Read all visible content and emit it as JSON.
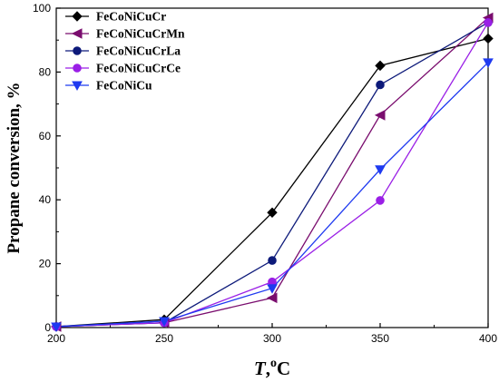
{
  "chart_data": {
    "type": "line",
    "x": [
      200,
      250,
      300,
      350,
      400
    ],
    "xlim": [
      200,
      400
    ],
    "ylim": [
      0,
      100
    ],
    "xticks": [
      200,
      250,
      300,
      350,
      400
    ],
    "yticks": [
      0,
      20,
      40,
      60,
      80,
      100
    ],
    "xlabel": {
      "italic": "T",
      "sep": ",",
      "sup": "o",
      "unit": "C"
    },
    "ylabel": "Propane conversion, %",
    "legend_position": "top-left",
    "grid": false,
    "series": [
      {
        "name": "FeCoNiCuCr",
        "color": "#000000",
        "marker": "diamond",
        "values": [
          0.3,
          2.5,
          36,
          82,
          90.5
        ]
      },
      {
        "name": "FeCoNiCuCrMn",
        "color": "#7a0d6e",
        "marker": "triangle-left",
        "values": [
          0.3,
          1.5,
          9.3,
          66.5,
          97
        ]
      },
      {
        "name": "FeCoNiCuCrLa",
        "color": "#0d1a7a",
        "marker": "circle",
        "values": [
          0.3,
          1.5,
          21,
          76,
          95.5
        ]
      },
      {
        "name": "FeCoNiCuCrCe",
        "color": "#9a1fe6",
        "marker": "circle",
        "values": [
          0.3,
          1.5,
          14.3,
          39.8,
          95.5
        ]
      },
      {
        "name": "FeCoNiCu",
        "color": "#1f3af0",
        "marker": "triangle-down",
        "values": [
          0.3,
          2.0,
          12.3,
          49.5,
          83
        ]
      }
    ]
  }
}
